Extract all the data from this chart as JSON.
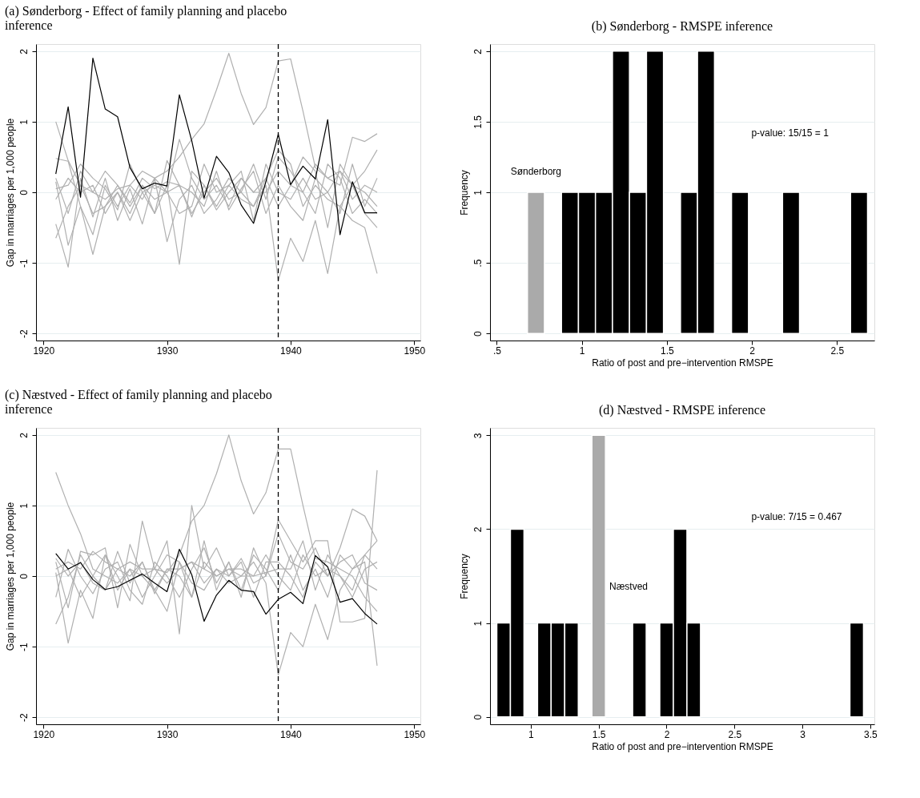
{
  "chart_data": [
    {
      "type": "line",
      "title": "(a) Sønderborg - Effect of family planning and placebo inference",
      "ylabel": "Gap in marriages per 1,000 people",
      "x": [
        1921,
        1922,
        1923,
        1924,
        1925,
        1926,
        1927,
        1928,
        1929,
        1930,
        1931,
        1932,
        1933,
        1934,
        1935,
        1936,
        1937,
        1938,
        1939,
        1940,
        1941,
        1942,
        1943,
        1944,
        1945,
        1946,
        1947
      ],
      "xlim": [
        1919.4,
        1950.5
      ],
      "xticks": [
        1920,
        1930,
        1940,
        1950
      ],
      "ylim": [
        -2.1,
        2.1
      ],
      "yticks": [
        -2,
        -1,
        0,
        1,
        2
      ],
      "grid": "y",
      "ref_lines": [
        {
          "axis": "x",
          "value": 1939,
          "line_style": "dashed",
          "color": "#000000"
        }
      ],
      "series": [
        {
          "color": "#b0b0b0",
          "values": [
            1.0,
            0.45,
            0.1,
            0.0,
            -0.1,
            0.05,
            0.1,
            -0.1,
            0.2,
            0.3,
            0.5,
            0.75,
            0.97,
            1.45,
            1.97,
            1.4,
            0.96,
            1.2,
            1.86,
            1.89,
            1.15,
            0.35,
            0.2,
            0.3,
            0.1,
            0.0,
            -0.2
          ]
        },
        {
          "color": "#b0b0b0",
          "values": [
            -0.65,
            -0.2,
            0.1,
            -0.3,
            -0.2,
            0.0,
            -0.3,
            0.1,
            -0.1,
            0.0,
            0.1,
            -0.3,
            0.0,
            0.2,
            -0.1,
            0.0,
            -0.2,
            0.1,
            -1.25,
            -0.65,
            -0.98,
            -0.4,
            -1.15,
            -0.2,
            0.1,
            -0.3,
            -0.5
          ]
        },
        {
          "color": "#b0b0b0",
          "values": [
            0.48,
            0.44,
            -0.2,
            -0.6,
            0.1,
            -0.2,
            0.1,
            0.3,
            0.2,
            0.0,
            0.75,
            0.2,
            -0.1,
            0.1,
            -0.2,
            0.2,
            0.0,
            0.2,
            0.6,
            0.4,
            -0.2,
            0.1,
            -0.1,
            -0.2,
            -0.4,
            -0.5,
            -1.15
          ]
        },
        {
          "color": "#b0b0b0",
          "values": [
            -0.45,
            -1.06,
            0.2,
            -0.35,
            0.2,
            -0.4,
            0.05,
            -0.45,
            0.2,
            -0.7,
            -0.1,
            0.1,
            -0.3,
            -0.1,
            0.2,
            0.0,
            0.4,
            -0.1,
            0.5,
            0.3,
            0.0,
            0.4,
            0.2,
            0.1,
            0.78,
            0.72,
            0.83
          ]
        },
        {
          "color": "#b0b0b0",
          "values": [
            0.15,
            -0.75,
            -0.2,
            -0.88,
            -0.2,
            0.1,
            -0.2,
            0.1,
            -0.3,
            0.1,
            -1.02,
            0.3,
            0.1,
            -0.2,
            0.1,
            -0.1,
            -0.2,
            0.2,
            -0.2,
            0.1,
            0.5,
            0.3,
            -0.5,
            0.4,
            0.1,
            0.3,
            0.6
          ]
        },
        {
          "color": "#b0b0b0",
          "values": [
            0.05,
            0.1,
            0.4,
            0.2,
            0.05,
            -0.25,
            0.4,
            0.0,
            -0.3,
            0.45,
            0.1,
            0.0,
            -0.2,
            0.3,
            -0.25,
            0.05,
            0.3,
            -0.3,
            0.1,
            -0.2,
            -0.4,
            0.2,
            0.0,
            0.3,
            -0.1,
            0.1,
            0.0
          ]
        },
        {
          "color": "#b0b0b0",
          "values": [
            -0.1,
            0.2,
            0.0,
            0.1,
            -0.3,
            0.0,
            -0.4,
            0.0,
            0.1,
            0.0,
            -0.3,
            -0.2,
            0.4,
            0.0,
            0.1,
            0.3,
            -0.4,
            0.4,
            0.0,
            -0.1,
            0.2,
            -0.1,
            0.0,
            -0.3,
            0.4,
            -0.2,
            0.2
          ]
        },
        {
          "color": "#b0b0b0",
          "values": [
            0.2,
            -0.3,
            0.3,
            0.0,
            0.3,
            0.1,
            -0.15,
            0.2,
            0.05,
            0.15,
            0.1,
            -0.35,
            0.1,
            -0.25,
            0.0,
            0.2,
            0.0,
            0.0,
            0.3,
            0.1,
            0.0,
            -0.3,
            0.4,
            0.2,
            -0.3,
            -0.1,
            -0.3
          ]
        },
        {
          "color": "#000000",
          "values": [
            0.26,
            1.21,
            -0.07,
            1.9,
            1.18,
            1.07,
            0.35,
            0.05,
            0.13,
            0.09,
            1.38,
            0.73,
            -0.08,
            0.51,
            0.28,
            -0.18,
            -0.44,
            0.15,
            0.82,
            0.11,
            0.37,
            0.19,
            1.03,
            -0.6,
            0.15,
            -0.29,
            -0.29
          ]
        }
      ]
    },
    {
      "type": "histogram",
      "title": "(b) Sønderborg - RMSPE inference",
      "xlabel": "Ratio of post and pre−intervention RMSPE",
      "ylabel": "Frequency",
      "bins": [
        0.68,
        0.78,
        0.88,
        0.98,
        1.08,
        1.18,
        1.28,
        1.38,
        1.48,
        1.58,
        1.68,
        1.78,
        1.88,
        1.98,
        2.08,
        2.18,
        2.28,
        2.38,
        2.48,
        2.58,
        2.68
      ],
      "values": [
        1,
        0,
        1,
        1,
        1,
        2,
        1,
        2,
        0,
        1,
        2,
        0,
        1,
        0,
        0,
        1,
        0,
        0,
        0,
        1
      ],
      "colors": [
        "#aaaaaa",
        "#000000",
        "#000000",
        "#000000",
        "#000000",
        "#000000",
        "#000000",
        "#000000",
        "#000000",
        "#000000",
        "#000000",
        "#000000",
        "#000000",
        "#000000",
        "#000000",
        "#000000",
        "#000000",
        "#000000",
        "#000000",
        "#000000"
      ],
      "xlim": [
        0.46,
        2.72
      ],
      "xticks": [
        {
          "value": 0.5,
          "label": ".5"
        },
        1,
        1.5,
        2,
        2.5
      ],
      "ylim": [
        -0.05,
        2.05
      ],
      "yticks": [
        0,
        {
          "value": 0.5,
          "label": ".5"
        },
        1,
        1.5,
        2
      ],
      "grid": "y",
      "annotations": [
        "Sønderborg",
        "p-value: 15/15 = 1"
      ]
    },
    {
      "type": "line",
      "title": "(c) Næstved - Effect of family planning and placebo inference",
      "ylabel": "Gap in marriages per 1,000 people",
      "x": [
        1921,
        1922,
        1923,
        1924,
        1925,
        1926,
        1927,
        1928,
        1929,
        1930,
        1931,
        1932,
        1933,
        1934,
        1935,
        1936,
        1937,
        1938,
        1939,
        1940,
        1941,
        1942,
        1943,
        1944,
        1945,
        1946,
        1947
      ],
      "xlim": [
        1919.4,
        1950.5
      ],
      "xticks": [
        1920,
        1930,
        1940,
        1950
      ],
      "ylim": [
        -2.1,
        2.1
      ],
      "yticks": [
        -2,
        -1,
        0,
        1,
        2
      ],
      "grid": "y",
      "ref_lines": [
        {
          "axis": "x",
          "value": 1939,
          "line_style": "dashed",
          "color": "#000000"
        }
      ],
      "series": [
        {
          "color": "#b0b0b0",
          "values": [
            1.47,
            1.0,
            0.6,
            0.1,
            0.0,
            -0.1,
            0.1,
            0.0,
            0.1,
            0.05,
            0.3,
            0.78,
            1.0,
            1.45,
            2.0,
            1.35,
            0.88,
            1.18,
            1.8,
            1.8,
            1.0,
            0.25,
            0.2,
            0.1,
            0.0,
            -0.3,
            -0.5
          ]
        },
        {
          "color": "#b0b0b0",
          "values": [
            -0.68,
            -0.3,
            0.3,
            0.0,
            -0.2,
            0.1,
            0.0,
            0.2,
            -0.2,
            0.1,
            0.0,
            -0.3,
            0.2,
            0.0,
            0.1,
            0.0,
            0.2,
            -0.1,
            -1.4,
            -0.8,
            -1.0,
            -0.4,
            -0.9,
            -0.2,
            0.1,
            0.3,
            0.5
          ]
        },
        {
          "color": "#b0b0b0",
          "values": [
            0.05,
            -0.95,
            -0.2,
            -0.6,
            0.3,
            0.0,
            -0.35,
            0.78,
            0.1,
            0.5,
            -0.82,
            1.0,
            0.1,
            0.4,
            0.0,
            0.25,
            -0.1,
            0.0,
            0.6,
            0.2,
            0.1,
            0.4,
            0.0,
            0.4,
            0.95,
            0.85,
            0.5
          ]
        },
        {
          "color": "#b0b0b0",
          "values": [
            0.2,
            -0.45,
            0.35,
            0.3,
            0.4,
            -0.45,
            0.45,
            0.0,
            -0.2,
            -0.5,
            0.2,
            -0.3,
            0.5,
            -0.2,
            0.2,
            -0.3,
            0.4,
            0.0,
            0.8,
            0.5,
            0.2,
            0.5,
            0.5,
            -0.65,
            -0.65,
            -0.6,
            1.5
          ]
        },
        {
          "color": "#b0b0b0",
          "values": [
            -0.3,
            0.38,
            0.0,
            -0.25,
            0.1,
            0.2,
            -0.2,
            -0.4,
            0.2,
            0.0,
            -0.3,
            0.1,
            0.4,
            -0.1,
            0.2,
            -0.2,
            0.3,
            0.1,
            -0.2,
            0.3,
            -0.2,
            0.1,
            -0.3,
            0.3,
            0.1,
            0.2,
            -1.27
          ]
        },
        {
          "color": "#b0b0b0",
          "values": [
            0.1,
            0.2,
            0.1,
            0.35,
            0.2,
            0.1,
            0.2,
            0.1,
            0.1,
            -0.1,
            0.1,
            0.2,
            -0.1,
            0.1,
            -0.1,
            0.0,
            0.0,
            0.3,
            0.0,
            -0.2,
            0.3,
            0.0,
            0.1,
            0.0,
            -0.2,
            0.3,
            0.1
          ]
        },
        {
          "color": "#b0b0b0",
          "values": [
            0.0,
            0.1,
            -0.3,
            0.0,
            0.3,
            -0.2,
            0.1,
            -0.3,
            0.0,
            0.3,
            0.2,
            -0.1,
            -0.2,
            0.1,
            0.0,
            0.2,
            -0.3,
            0.2,
            0.2,
            0.0,
            -0.3,
            0.2,
            0.0,
            0.2,
            0.3,
            -0.1,
            -0.2
          ]
        },
        {
          "color": "#b0b0b0",
          "values": [
            0.25,
            0.0,
            0.2,
            -0.1,
            -0.2,
            0.35,
            -0.1,
            0.2,
            -0.25,
            0.1,
            0.1,
            0.2,
            0.1,
            0.0,
            0.1,
            0.1,
            0.0,
            0.05,
            0.1,
            0.1,
            0.5,
            -0.2,
            0.3,
            0.0,
            -0.3,
            0.1,
            0.2
          ]
        },
        {
          "color": "#000000",
          "values": [
            0.32,
            0.1,
            0.19,
            -0.05,
            -0.19,
            -0.15,
            -0.06,
            0.03,
            -0.1,
            -0.22,
            0.38,
            0.02,
            -0.64,
            -0.27,
            -0.06,
            -0.2,
            -0.22,
            -0.54,
            -0.33,
            -0.23,
            -0.39,
            0.29,
            0.13,
            -0.37,
            -0.32,
            -0.53,
            -0.68
          ]
        }
      ]
    },
    {
      "type": "histogram",
      "title": "(d) Næstved - RMSPE inference",
      "xlabel": "Ratio of post and pre−intervention RMSPE",
      "ylabel": "Frequency",
      "bins": [
        0.75,
        0.85,
        0.95,
        1.05,
        1.15,
        1.25,
        1.35,
        1.45,
        1.55,
        1.65,
        1.75,
        1.85,
        1.95,
        2.05,
        2.15,
        2.25,
        2.35,
        2.45,
        2.55,
        2.65,
        2.75,
        2.85,
        2.95,
        3.05,
        3.15,
        3.25,
        3.35,
        3.45
      ],
      "values": [
        1,
        2,
        0,
        1,
        1,
        1,
        0,
        3,
        0,
        0,
        1,
        0,
        1,
        2,
        1,
        0,
        0,
        0,
        0,
        0,
        0,
        0,
        0,
        0,
        0,
        0,
        1
      ],
      "colors": [
        "#000000",
        "#000000",
        "#000000",
        "#000000",
        "#000000",
        "#000000",
        "#000000",
        "#aaaaaa",
        "#000000",
        "#000000",
        "#000000",
        "#000000",
        "#000000",
        "#000000",
        "#000000",
        "#000000",
        "#000000",
        "#000000",
        "#000000",
        "#000000",
        "#000000",
        "#000000",
        "#000000",
        "#000000",
        "#000000",
        "#000000",
        "#000000"
      ],
      "xlim": [
        0.7,
        3.53
      ],
      "xticks": [
        1,
        1.5,
        2,
        2.5,
        3,
        3.5
      ],
      "ylim": [
        -0.08,
        3.08
      ],
      "yticks": [
        0,
        1,
        2,
        3
      ],
      "grid": "y",
      "annotations": [
        "Næstved",
        "p-value: 7/15 = 0.467"
      ]
    }
  ]
}
